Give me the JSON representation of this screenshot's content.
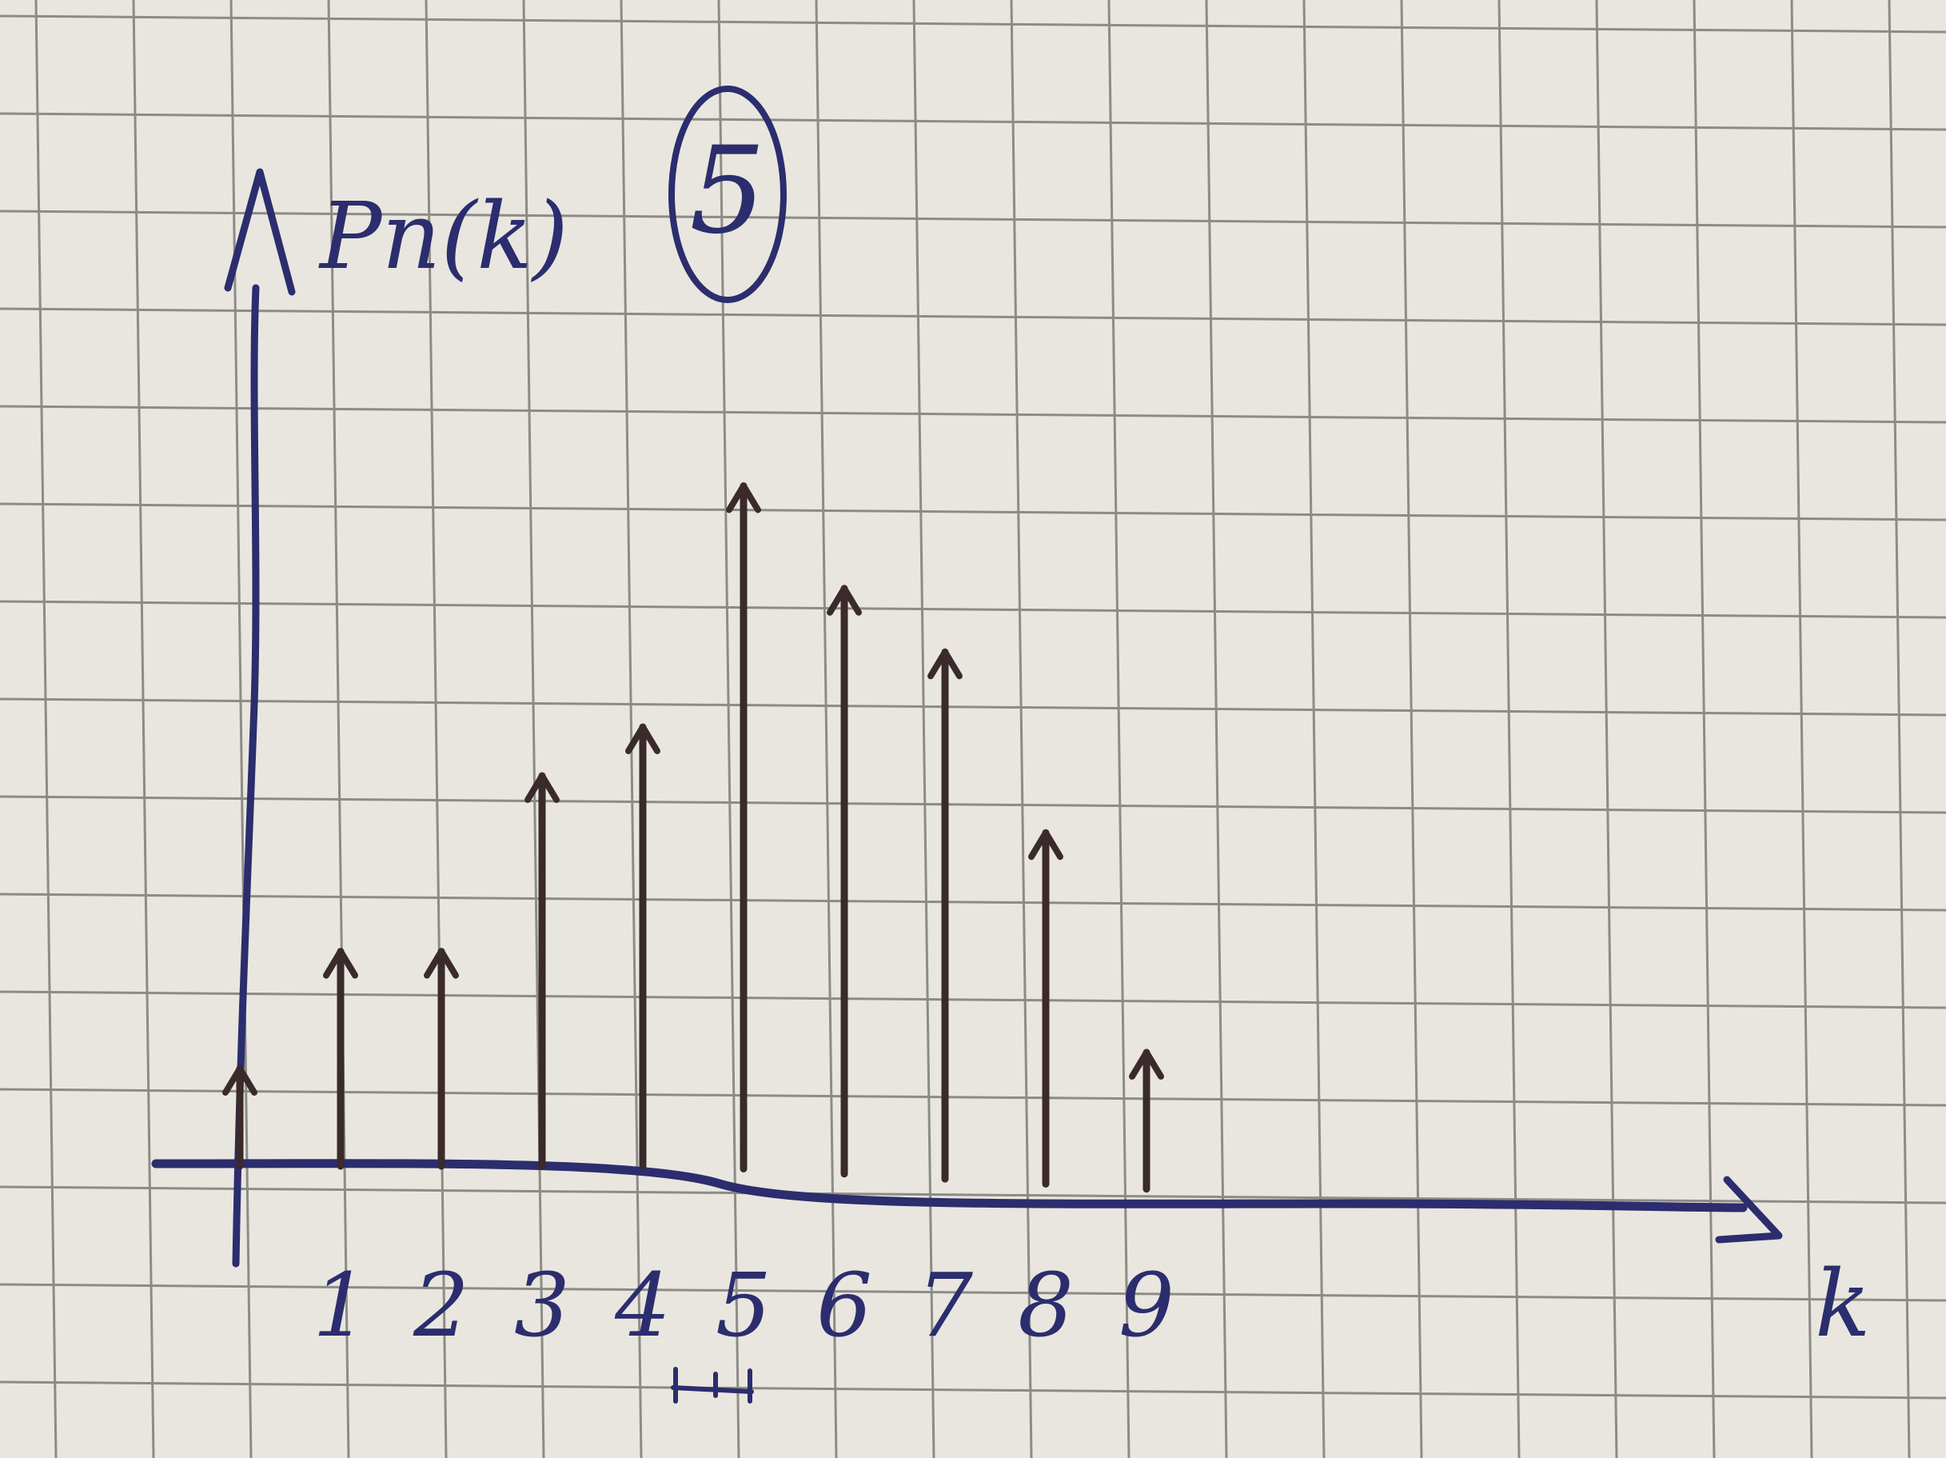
{
  "chart_data": {
    "type": "stem",
    "ylabel": "Pn(k)",
    "xlabel": "k",
    "annotation": "5",
    "x": [
      0,
      1,
      2,
      3,
      4,
      5,
      6,
      7,
      8,
      9
    ],
    "tick_labels": [
      "",
      "1",
      "2",
      "3",
      "4",
      "5",
      "6",
      "7",
      "8",
      "9"
    ],
    "values": [
      1,
      2.2,
      2.2,
      4,
      4.5,
      7,
      6,
      5.4,
      3.6,
      1.4
    ],
    "grid": true,
    "colors": {
      "ink": "#2b2d6e",
      "stem": "#3a2a2c",
      "grid": "#8d8b86",
      "paper": "#e9e6df"
    }
  }
}
